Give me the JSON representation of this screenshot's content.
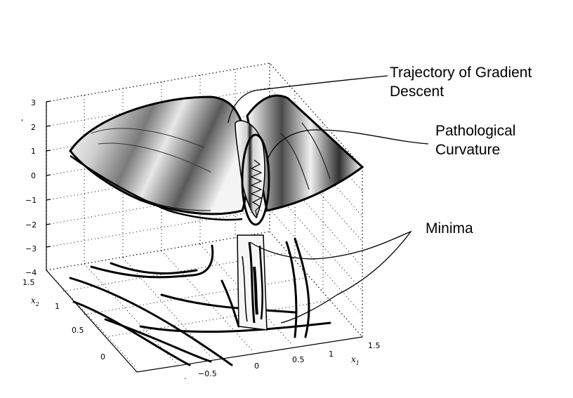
{
  "callouts": {
    "trajectory_line1": "Trajectory of Gradient",
    "trajectory_line2": "Descent",
    "pathological_line1": "Pathological",
    "pathological_line2": "Curvature",
    "minima": "Minima"
  },
  "axes": {
    "z_ticks": [
      "3",
      "2",
      "1",
      "0",
      "−1",
      "−2",
      "−3",
      "−4"
    ],
    "x2_ticks": [
      "1.5",
      "1",
      "0.5",
      "0",
      "."
    ],
    "x1_ticks": [
      "−0.5",
      "0",
      "0.5",
      "1",
      "1.5"
    ],
    "x2_label": "x",
    "x2_sub": "2",
    "x1_label": "x",
    "x1_sub": "1",
    "z_stray": "'"
  }
}
